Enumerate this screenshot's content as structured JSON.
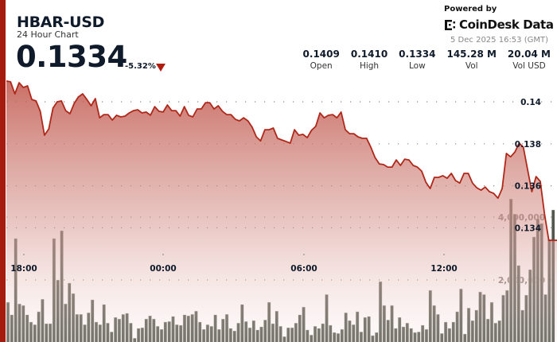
{
  "header": {
    "title": "HBAR-USD",
    "subtitle": "24 Hour Chart",
    "price": "0.1334",
    "change": "-5.32%",
    "change_direction": "down",
    "powered_by": "Powered by",
    "brand": "CoinDesk Data",
    "timestamp": "5 Dec 2025 16:53 (GMT)"
  },
  "stats": [
    {
      "value": "0.1409",
      "label": "Open"
    },
    {
      "value": "0.1410",
      "label": "High"
    },
    {
      "value": "0.1334",
      "label": "Low"
    },
    {
      "value": "145.28 M",
      "label": "Vol"
    },
    {
      "value": "20.04 M",
      "label": "Vol USD"
    }
  ],
  "colors": {
    "accent": "#a51c0e",
    "line": "#b0281a",
    "fill": "#c9685e",
    "volume": "#5f635a"
  },
  "chart_data": {
    "type": "area",
    "price_ticks": [
      "0.14",
      "0.138",
      "0.136",
      "0.134"
    ],
    "price_tick_values": [
      0.14,
      0.138,
      0.136,
      0.134
    ],
    "volume_ticks": [
      "4,000,000",
      "2,000,000"
    ],
    "volume_tick_values": [
      4000000,
      2000000
    ],
    "x_ticks": [
      "18:00",
      "00:00",
      "06:00",
      "12:00"
    ],
    "grid": true,
    "price": [
      0.14099,
      0.14095,
      0.14038,
      0.14091,
      0.14068,
      0.14076,
      0.14011,
      0.14004,
      0.13955,
      0.13841,
      0.13871,
      0.1397,
      0.14,
      0.14004,
      0.13958,
      0.13943,
      0.13992,
      0.14023,
      0.14038,
      0.14011,
      0.13981,
      0.14015,
      0.13924,
      0.13939,
      0.13939,
      0.13913,
      0.13936,
      0.13928,
      0.13932,
      0.13947,
      0.13958,
      0.13962,
      0.13947,
      0.13951,
      0.13936,
      0.13977,
      0.13955,
      0.13951,
      0.13985,
      0.13958,
      0.13958,
      0.13932,
      0.13977,
      0.13936,
      0.13928,
      0.13966,
      0.13966,
      0.13996,
      0.13996,
      0.13966,
      0.13981,
      0.13955,
      0.13939,
      0.13939,
      0.13917,
      0.13909,
      0.13924,
      0.13909,
      0.13879,
      0.13833,
      0.13814,
      0.13867,
      0.13867,
      0.13875,
      0.13826,
      0.13818,
      0.13811,
      0.13803,
      0.13867,
      0.13841,
      0.13845,
      0.13829,
      0.13864,
      0.13883,
      0.13947,
      0.13924,
      0.13936,
      0.13939,
      0.13924,
      0.13951,
      0.13867,
      0.13848,
      0.13848,
      0.13833,
      0.13826,
      0.13826,
      0.13784,
      0.13735,
      0.13704,
      0.13701,
      0.13689,
      0.13689,
      0.13723,
      0.13697,
      0.13727,
      0.13723,
      0.13697,
      0.13689,
      0.1367,
      0.13617,
      0.13587,
      0.1364,
      0.1364,
      0.13648,
      0.13636,
      0.13659,
      0.13625,
      0.13613,
      0.13659,
      0.13659,
      0.13613,
      0.13591,
      0.13579,
      0.13594,
      0.13572,
      0.13564,
      0.13541,
      0.13587,
      0.13754,
      0.13738,
      0.13761,
      0.13803,
      0.13784,
      0.13678,
      0.13572,
      0.13644,
      0.13621,
      0.13466,
      0.1334,
      0.1334
    ],
    "volume": [
      1290000,
      890000,
      3320000,
      1240000,
      1190000,
      890000,
      660000,
      580000,
      990000,
      1390000,
      610000,
      610000,
      3320000,
      2000000,
      3570000,
      1240000,
      1900000,
      1570000,
      910000,
      910000,
      580000,
      960000,
      1370000,
      660000,
      580000,
      1220000,
      630000,
      350000,
      810000,
      760000,
      910000,
      940000,
      630000,
      150000,
      460000,
      480000,
      760000,
      860000,
      760000,
      530000,
      430000,
      660000,
      680000,
      840000,
      580000,
      560000,
      890000,
      860000,
      910000,
      1010000,
      660000,
      430000,
      580000,
      530000,
      890000,
      430000,
      760000,
      910000,
      460000,
      380000,
      630000,
      1220000,
      680000,
      480000,
      710000,
      410000,
      510000,
      730000,
      1290000,
      610000,
      1010000,
      530000,
      200000,
      480000,
      480000,
      630000,
      890000,
      1140000,
      410000,
      250000,
      530000,
      460000,
      610000,
      1540000,
      560000,
      330000,
      300000,
      430000,
      960000,
      710000,
      580000,
      990000,
      350000,
      810000,
      840000,
      230000,
      330000,
      1950000,
      1190000,
      730000,
      1190000,
      460000,
      810000,
      510000,
      630000,
      460000,
      330000,
      350000,
      560000,
      430000,
      1670000,
      1190000,
      910000,
      300000,
      660000,
      460000,
      660000,
      990000,
      1720000,
      280000,
      1110000,
      710000,
      1040000,
      1620000,
      1540000,
      760000,
      1290000,
      630000,
      710000,
      1520000,
      1670000,
      4580000,
      4100000,
      2460000,
      1040000,
      1520000,
      2330000,
      3370000,
      3950000,
      3800000,
      1540000,
      3290000,
      4230000
    ]
  }
}
